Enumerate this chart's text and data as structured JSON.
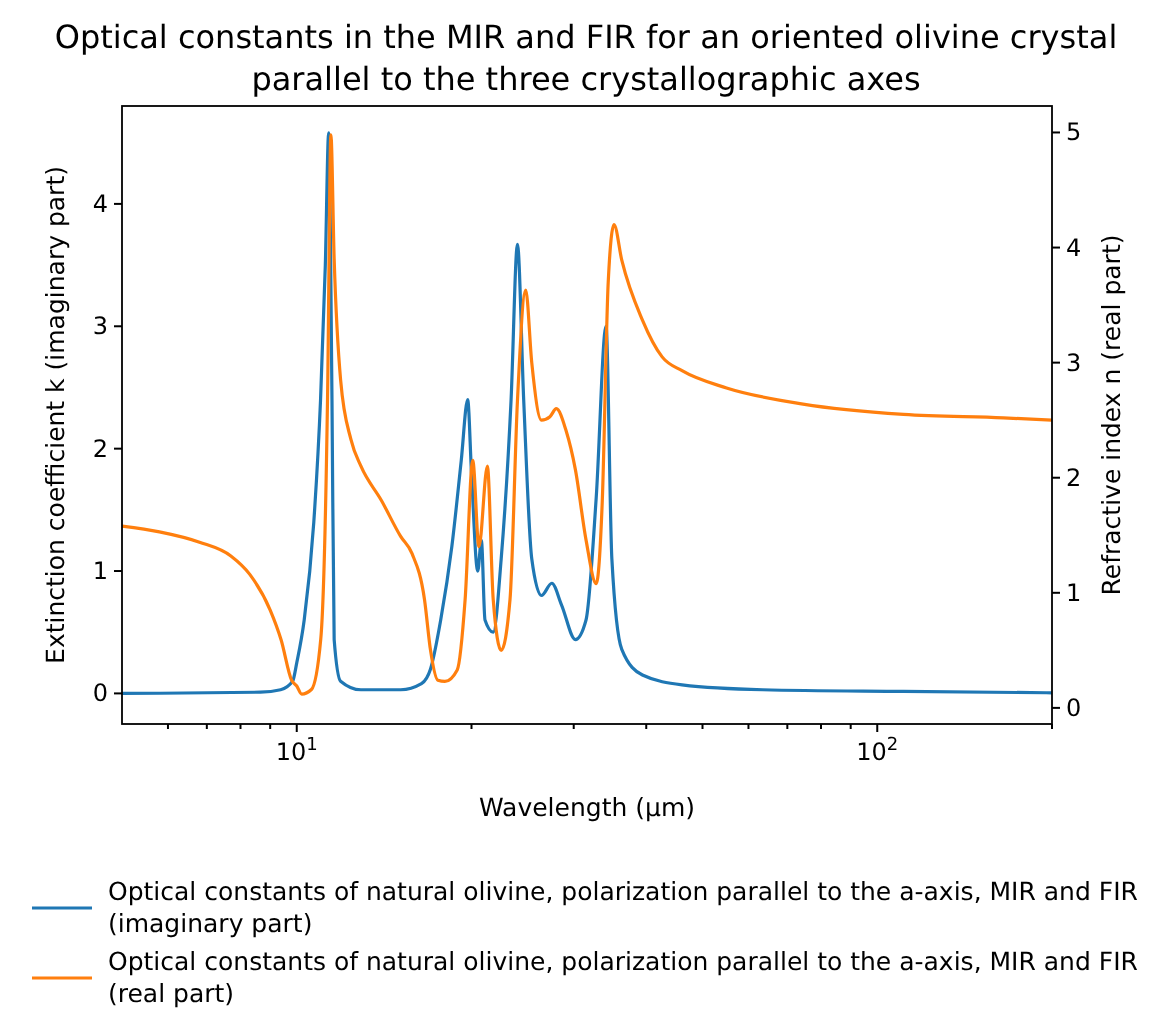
{
  "chart_data": {
    "type": "line",
    "title": "Optical constants in the MIR and FIR for an oriented olivine crystal parallel to the three crystallographic axes",
    "xlabel": "Wavelength (μm)",
    "ylabel": "Extinction coefficient k (imaginary part)",
    "y2label": "Refractive index n (real part)",
    "log": "x",
    "xlim": [
      5,
      200
    ],
    "xticks": [
      {
        "value": 6,
        "label": null
      },
      {
        "value": 7,
        "label": null
      },
      {
        "value": 8,
        "label": null
      },
      {
        "value": 9,
        "label": null
      },
      {
        "value": 10,
        "label": "10$^{1}$"
      },
      {
        "value": 20,
        "label": null
      },
      {
        "value": 30,
        "label": null
      },
      {
        "value": 40,
        "label": null
      },
      {
        "value": 50,
        "label": null
      },
      {
        "value": 60,
        "label": null
      },
      {
        "value": 70,
        "label": null
      },
      {
        "value": 80,
        "label": null
      },
      {
        "value": 90,
        "label": null
      },
      {
        "value": 100,
        "label": "10$^{2}$"
      },
      {
        "value": 200,
        "label": null
      }
    ],
    "ylim": [
      -0.25,
      4.8
    ],
    "yticks": [
      0,
      1,
      2,
      3,
      4
    ],
    "y2lim": [
      -0.14,
      5.23
    ],
    "y2ticks": [
      0,
      1,
      2,
      3,
      4,
      5
    ],
    "legend": "bottom",
    "grid": false,
    "series": [
      {
        "name": "Optical constants of natural olivine, polarization parallel to the a-axis, MIR and FIR (imaginary part)",
        "color": "#1f77b4",
        "x": [
          5,
          8.66,
          9.38,
          9.84,
          10,
          10.3,
          10.7,
          10.99,
          11.2,
          11.35,
          11.5,
          11.6,
          11.9,
          12.9,
          15.1,
          16.4,
          17.0,
          17.7,
          18.5,
          19.2,
          19.7,
          20.0,
          20.5,
          20.8,
          21.1,
          21.8,
          22.5,
          23.4,
          24.0,
          24.6,
          25.4,
          26.4,
          27.5,
          28.6,
          30.2,
          31.5,
          32.8,
          34.1,
          34.9,
          36.3,
          39.4,
          46.1,
          63.5,
          111,
          200
        ],
        "values": [
          0,
          0.01,
          0.03,
          0.1,
          0.25,
          0.6,
          1.4,
          2.4,
          3.5,
          4.58,
          2.4,
          0.44,
          0.1,
          0.03,
          0.03,
          0.08,
          0.2,
          0.6,
          1.2,
          1.9,
          2.4,
          1.8,
          1.0,
          1.25,
          0.6,
          0.5,
          1.1,
          2.4,
          3.67,
          2.4,
          1.1,
          0.8,
          0.9,
          0.72,
          0.44,
          0.6,
          1.6,
          3.0,
          1.1,
          0.36,
          0.15,
          0.07,
          0.03,
          0.016,
          0.005
        ]
      },
      {
        "name": "Optical constants of natural olivine, polarization parallel to the a-axis, MIR and FIR (real part)",
        "color": "#ff7f0e",
        "axis": "y2",
        "x": [
          5,
          5.8,
          6.8,
          7.7,
          8.3,
          9.0,
          9.4,
          9.8,
          10,
          10.2,
          10.6,
          11.0,
          11.3,
          11.45,
          11.6,
          11.9,
          12.4,
          12.9,
          14.0,
          15.1,
          15.8,
          16.6,
          17.0,
          17.5,
          18.0,
          18.9,
          19.5,
          20.1,
          20.6,
          21.3,
          21.8,
          22.5,
          23.3,
          24.0,
          24.8,
          25.4,
          26.4,
          27.3,
          28.0,
          29.1,
          30.2,
          31.5,
          32.8,
          33.6,
          34.4,
          35.2,
          36.3,
          39.4,
          42.6,
          46.1,
          55,
          74.5,
          111,
          165,
          200
        ],
        "values": [
          1.58,
          1.53,
          1.44,
          1.32,
          1.16,
          0.85,
          0.59,
          0.24,
          0.19,
          0.12,
          0.16,
          0.6,
          2.7,
          4.98,
          3.9,
          2.85,
          2.33,
          2.1,
          1.8,
          1.49,
          1.34,
          0.94,
          0.5,
          0.24,
          0.23,
          0.33,
          0.94,
          2.15,
          1.4,
          2.1,
          0.94,
          0.5,
          0.94,
          2.67,
          3.63,
          3.0,
          2.5,
          2.53,
          2.6,
          2.41,
          2.07,
          1.46,
          1.08,
          1.8,
          3.7,
          4.2,
          3.89,
          3.37,
          3.05,
          2.93,
          2.78,
          2.64,
          2.55,
          2.52,
          2.5
        ]
      }
    ]
  }
}
